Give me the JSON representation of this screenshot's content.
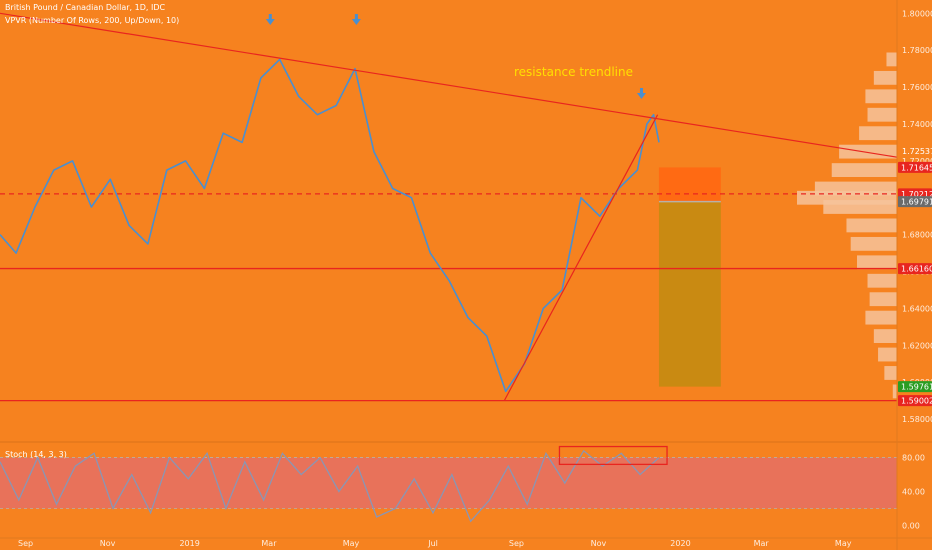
{
  "header": {
    "symbol": "British Pound / Canadian Dollar, 1D, IDC",
    "indicator": "VPVR (Number Of Rows, 200, Up/Down, 10)",
    "stoch_label": "Stoch (14, 3, 3)"
  },
  "colors": {
    "background": "#f6821f",
    "price_line": "#4a8fd0",
    "trendline": "#e8251f",
    "annotation_text": "#ffe000",
    "stop_zone": "#ff6a13",
    "target_zone": "#c98a12",
    "entry_line": "#b8b0a8",
    "volume_profile": "#f6c39b",
    "stoch_band": "#e8725a",
    "stoch_line": "#8a96b4",
    "label_red": "#e8251f",
    "label_green": "#2a9d22",
    "label_grey": "#6b6b6b"
  },
  "chart_data": [
    {
      "type": "line",
      "title": "British Pound / Canadian Dollar, 1D, IDC",
      "x_tick_labels": [
        "Sep",
        "Nov",
        "2019",
        "Mar",
        "May",
        "Jul",
        "Sep",
        "Nov",
        "2020",
        "Mar",
        "May"
      ],
      "y_tick_labels": [
        "1.80000",
        "1.78000",
        "1.76000",
        "1.74000",
        "1.72000",
        "1.70000",
        "1.68000",
        "1.66000",
        "1.64000",
        "1.62000",
        "1.60000",
        "1.58000"
      ],
      "y_ticks": [
        1.8,
        1.78,
        1.76,
        1.74,
        1.72,
        1.7,
        1.68,
        1.66,
        1.64,
        1.62,
        1.6,
        1.58
      ],
      "ylim": [
        1.573,
        1.8045
      ],
      "x_range": [
        "2018-08-13",
        "2020-06-10"
      ],
      "x": [
        "2018-08-13",
        "2018-08-25",
        "2018-09-08",
        "2018-09-22",
        "2018-10-06",
        "2018-10-20",
        "2018-11-03",
        "2018-11-17",
        "2018-12-01",
        "2018-12-15",
        "2018-12-29",
        "2019-01-12",
        "2019-01-26",
        "2019-02-09",
        "2019-02-23",
        "2019-03-09",
        "2019-03-23",
        "2019-04-06",
        "2019-04-20",
        "2019-05-04",
        "2019-05-18",
        "2019-06-01",
        "2019-06-15",
        "2019-06-29",
        "2019-07-13",
        "2019-07-27",
        "2019-08-10",
        "2019-08-24",
        "2019-09-07",
        "2019-09-21",
        "2019-10-05",
        "2019-10-19",
        "2019-11-02",
        "2019-11-16",
        "2019-11-30",
        "2019-12-07"
      ],
      "values": [
        1.68,
        1.67,
        1.695,
        1.715,
        1.72,
        1.695,
        1.71,
        1.685,
        1.675,
        1.715,
        1.72,
        1.705,
        1.735,
        1.73,
        1.765,
        1.775,
        1.755,
        1.745,
        1.75,
        1.77,
        1.725,
        1.705,
        1.7,
        1.67,
        1.655,
        1.635,
        1.625,
        1.595,
        1.61,
        1.64,
        1.65,
        1.7,
        1.69,
        1.705,
        1.715,
        1.74
      ],
      "last_segment": {
        "x": [
          "2019-12-07",
          "2019-12-12",
          "2019-12-16"
        ],
        "values": [
          1.74,
          1.745,
          1.73
        ]
      },
      "trendlines": [
        {
          "name": "resistance trendline",
          "points": [
            [
              "2018-08-13",
              1.8
            ],
            [
              "2020-06-10",
              1.722
            ]
          ]
        },
        {
          "points": [
            [
              "2019-08-23",
              1.59
            ],
            [
              "2019-12-15",
              1.745
            ]
          ]
        }
      ],
      "annotation": "resistance trendline",
      "arrow_dates": [
        "2019-03-02",
        "2019-05-05",
        "2019-12-03"
      ],
      "levels": [
        {
          "value": 1.70212,
          "label": "1.70212",
          "style": "dashed"
        },
        {
          "value": 1.6616,
          "label": "1.66160",
          "style": "solid"
        },
        {
          "value": 1.59002,
          "label": "1.59002",
          "style": "solid"
        }
      ],
      "position_box": {
        "x_start": "2019-12-16",
        "x_end": "2020-01-31",
        "stop": 1.71645,
        "entry": 1.69791,
        "target": 1.59761
      },
      "price_labels": [
        {
          "value": 1.72537,
          "label": "1.72537",
          "kind": "plain"
        },
        {
          "value": 1.71645,
          "label": "1.71645",
          "kind": "red"
        },
        {
          "value": 1.70212,
          "label": "1.70212",
          "kind": "red"
        },
        {
          "value": 1.69791,
          "label": "1.69791",
          "kind": "grey"
        },
        {
          "value": 1.6616,
          "label": "1.66160",
          "kind": "red"
        },
        {
          "value": 1.59761,
          "label": "1.59761",
          "kind": "green"
        },
        {
          "value": 1.59002,
          "label": "1.59002",
          "kind": "red"
        }
      ],
      "volume_profile": {
        "y": [
          1.775,
          1.765,
          1.755,
          1.745,
          1.735,
          1.725,
          1.715,
          1.705,
          1.7,
          1.695,
          1.685,
          1.675,
          1.665,
          1.655,
          1.645,
          1.635,
          1.625,
          1.615,
          1.605,
          1.595
        ],
        "volume": [
          10,
          22,
          30,
          28,
          36,
          55,
          62,
          78,
          95,
          70,
          48,
          44,
          38,
          28,
          26,
          30,
          22,
          18,
          12,
          4
        ]
      }
    },
    {
      "type": "line",
      "title": "Stoch (14, 3, 3)",
      "y_tick_labels": [
        "80.00",
        "40.00",
        "0.00"
      ],
      "y_ticks": [
        80,
        40,
        0
      ],
      "ylim": [
        -10,
        96
      ],
      "band": [
        20,
        80
      ],
      "x": [
        "2018-08-13",
        "2018-08-27",
        "2018-09-10",
        "2018-09-24",
        "2018-10-08",
        "2018-10-22",
        "2018-11-05",
        "2018-11-19",
        "2018-12-03",
        "2018-12-17",
        "2018-12-31",
        "2019-01-14",
        "2019-01-28",
        "2019-02-11",
        "2019-02-25",
        "2019-03-11",
        "2019-03-25",
        "2019-04-08",
        "2019-04-22",
        "2019-05-06",
        "2019-05-20",
        "2019-06-03",
        "2019-06-17",
        "2019-07-01",
        "2019-07-15",
        "2019-07-29",
        "2019-08-12",
        "2019-08-26",
        "2019-09-09",
        "2019-09-23",
        "2019-10-07",
        "2019-10-21",
        "2019-11-04",
        "2019-11-18",
        "2019-12-02",
        "2019-12-16"
      ],
      "values": [
        75,
        30,
        80,
        25,
        70,
        85,
        20,
        60,
        15,
        80,
        55,
        85,
        20,
        75,
        30,
        85,
        60,
        80,
        40,
        70,
        10,
        20,
        55,
        15,
        60,
        5,
        30,
        70,
        25,
        85,
        50,
        88,
        70,
        85,
        60,
        80
      ],
      "highlight_box": {
        "x_start": "2019-10-03",
        "x_end": "2019-12-22",
        "y_range": [
          72,
          93
        ]
      }
    }
  ]
}
